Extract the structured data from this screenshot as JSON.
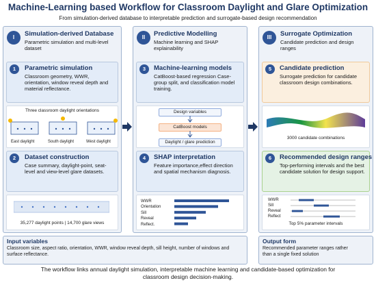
{
  "header": {
    "title": "Machine-Learning based Workflow for Classroom Daylight and Glare Optimization",
    "subtitle": "From simulation-derived database to interpretable prediction and surrogate-based design recommendation"
  },
  "columns": [
    {
      "numeral": "I",
      "title": "Simulation-derived Database",
      "subtitle": "Parametric simulation and multi-level dataset",
      "steps": [
        {
          "number": "1",
          "title": "Parametric simulation",
          "text": "Classroom geometry, WWR, orientation, window reveal depth and material reflectance."
        },
        {
          "number": "2",
          "title": "Dataset construction",
          "text": "Case summary, daylight-point, seat-level and view-level glare datasets."
        }
      ],
      "figure1": {
        "caption": "Three classroom daylight orientations",
        "labels": [
          "East daylight",
          "South daylight",
          "West daylight"
        ]
      },
      "figure2": {
        "caption": "35,277 daylight points | 14,700 glare views"
      }
    },
    {
      "numeral": "II",
      "title": "Predictive Modelling",
      "subtitle": "Machine learning and SHAP explainability",
      "steps": [
        {
          "number": "3",
          "title": "Machine-learning models",
          "text": "CatBoost-based regression Case-group split, and classification model training."
        },
        {
          "number": "4",
          "title": "SHAP interpretation",
          "text": "Feature importance,effect direction and spatial mechanism diagnosis."
        }
      ],
      "figure1": {
        "steps": [
          "Design variables",
          "CatBoost models",
          "Daylight / glare prediction"
        ]
      },
      "figure2": {
        "labels": [
          "WWR",
          "Orientation",
          "Sill",
          "Reveal",
          "Reflect."
        ]
      }
    },
    {
      "numeral": "III",
      "title": "Surrogate Optimization",
      "subtitle": "Candidate prediction and design ranges",
      "steps": [
        {
          "number": "5",
          "title": "Candidate prediction",
          "text": "Surrogate prediction for candidate classroom design combinations."
        },
        {
          "number": "6",
          "title": "Recommended design ranges",
          "text": "Top-performing intervals and the best candidate solution for design support."
        }
      ],
      "figure1": {
        "caption": "3000 candidate combinations"
      },
      "figure2": {
        "labels": [
          "WWR",
          "Sill",
          "Reveal",
          "Reflect"
        ],
        "caption": "Top 5% parameter intervals"
      }
    }
  ],
  "input": {
    "title": "Input variables",
    "text": "Classroom size, aspect ratio, orientation, WWR, window reveal depth, sill height, number of windows and surface reflectance."
  },
  "output": {
    "title": "Output form",
    "text": "Recommended parameter ranges rather than a single fixed solution"
  },
  "footer": "The workflow links annual daylight simulation, interpretable machine learning and candidate-based optimization for classroom design decision-making."
}
